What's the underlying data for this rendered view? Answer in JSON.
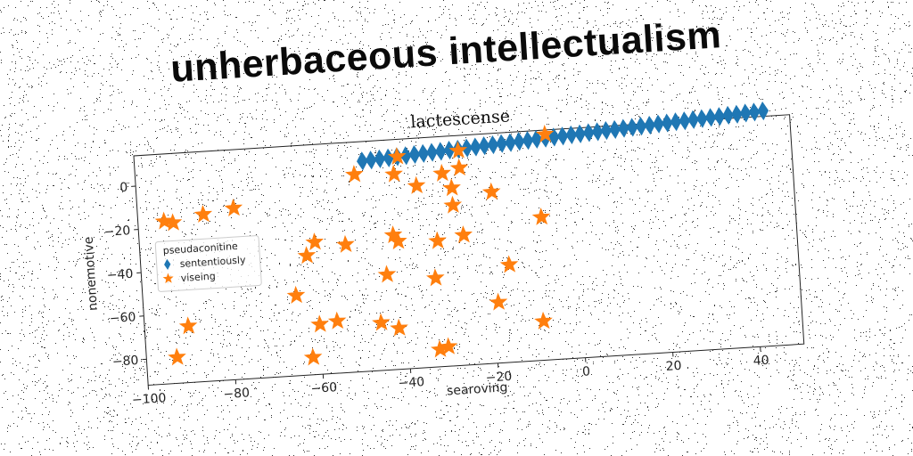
{
  "banner": "unherbaceous intellectualism",
  "chart_data": {
    "type": "scatter",
    "title": "lactescense",
    "xlabel": "searoving",
    "ylabel": "nonemotive",
    "xlim": [
      -100,
      50
    ],
    "ylim": [
      -92,
      14
    ],
    "xticks": [
      -100,
      -80,
      -60,
      -40,
      -20,
      0,
      20,
      40
    ],
    "yticks": [
      0,
      -20,
      -40,
      -60,
      -80
    ],
    "grid": false,
    "legend": {
      "title": "pseudaconitine",
      "position": "center-left"
    },
    "series": [
      {
        "name": "sententiously",
        "marker": "thin_diamond",
        "color": "#1f77b4",
        "points": [
          [
            -48,
            5
          ],
          [
            -46,
            5.2
          ],
          [
            -44,
            5.5
          ],
          [
            -42,
            5.7
          ],
          [
            -40,
            6
          ],
          [
            -38,
            6.2
          ],
          [
            -36,
            6.5
          ],
          [
            -34,
            6.7
          ],
          [
            -32,
            7
          ],
          [
            -30,
            7.2
          ],
          [
            -28,
            7.5
          ],
          [
            -26,
            7.7
          ],
          [
            -24,
            8
          ],
          [
            -22,
            8.2
          ],
          [
            -20,
            8.5
          ],
          [
            -18,
            8.7
          ],
          [
            -16,
            9
          ],
          [
            -14,
            9.2
          ],
          [
            -12,
            9.5
          ],
          [
            -10,
            9.7
          ],
          [
            -8,
            10
          ],
          [
            -6,
            10.2
          ],
          [
            -4,
            10.5
          ],
          [
            -2,
            10.7
          ],
          [
            0,
            11
          ],
          [
            2,
            11.2
          ],
          [
            4,
            11.5
          ],
          [
            6,
            11.7
          ],
          [
            8,
            12
          ],
          [
            10,
            12.2
          ],
          [
            12,
            12.5
          ],
          [
            14,
            12.7
          ],
          [
            16,
            13
          ],
          [
            18,
            13.2
          ],
          [
            20,
            13.5
          ],
          [
            22,
            13.7
          ],
          [
            24,
            14
          ],
          [
            26,
            14.2
          ],
          [
            28,
            14.5
          ],
          [
            30,
            14.7
          ],
          [
            32,
            15
          ],
          [
            34,
            15.2
          ],
          [
            36,
            15.5
          ],
          [
            38,
            15.7
          ],
          [
            40,
            16
          ],
          [
            42,
            16.2
          ],
          [
            44,
            16.5
          ]
        ]
      },
      {
        "name": "viseing",
        "marker": "star",
        "color": "#ff7f0e",
        "points": [
          [
            -94,
            -17
          ],
          [
            -92,
            -18
          ],
          [
            -85,
            -15
          ],
          [
            -78,
            -13
          ],
          [
            -90,
            -66
          ],
          [
            -93,
            -80
          ],
          [
            -65,
            -55
          ],
          [
            -60,
            -69
          ],
          [
            -56,
            -68
          ],
          [
            -62,
            -84
          ],
          [
            -62,
            -37
          ],
          [
            -60,
            -31
          ],
          [
            -53,
            -33
          ],
          [
            -50,
            -1
          ],
          [
            -46,
            -70
          ],
          [
            -44,
            -48
          ],
          [
            -42,
            -73
          ],
          [
            -42,
            -30
          ],
          [
            -41,
            -33
          ],
          [
            -41,
            -2
          ],
          [
            -40,
            6
          ],
          [
            -36,
            -8
          ],
          [
            -33,
            -51
          ],
          [
            -33,
            -84
          ],
          [
            -32,
            -34
          ],
          [
            -31,
            -83
          ],
          [
            -30,
            -3
          ],
          [
            -28,
            -10
          ],
          [
            -28,
            -18
          ],
          [
            -26,
            -32
          ],
          [
            -26,
            -1
          ],
          [
            -26,
            7
          ],
          [
            -19,
            -13
          ],
          [
            -19,
            -64
          ],
          [
            -16,
            -47
          ],
          [
            -9,
            -74
          ],
          [
            -8,
            -26
          ],
          [
            -6,
            12
          ]
        ]
      }
    ]
  }
}
